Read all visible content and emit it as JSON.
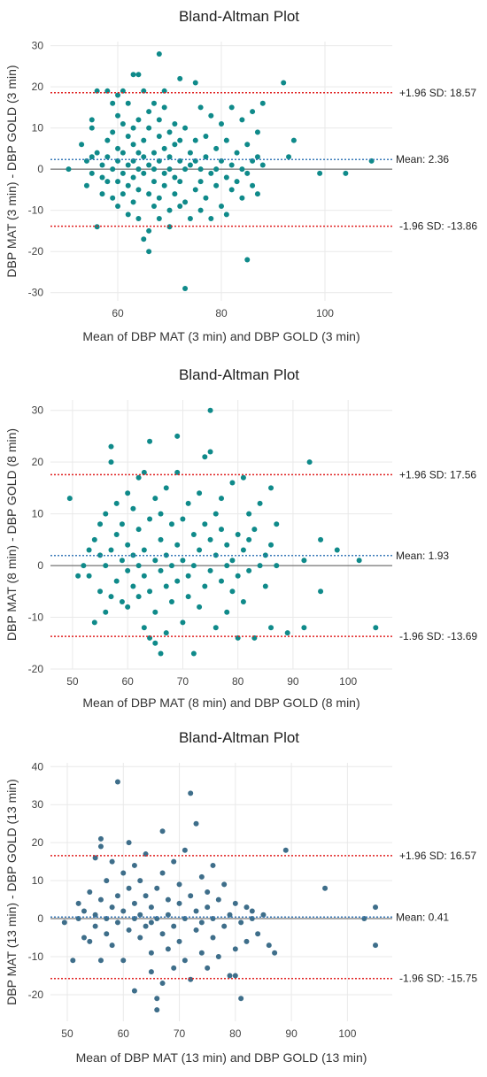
{
  "chart_data": [
    {
      "type": "scatter",
      "title": "Bland-Altman Plot",
      "xlabel": "Mean of DBP MAT (3 min) and DBP GOLD (3 min)",
      "ylabel": "DBP MAT (3 min) - DBP GOLD (3 min)",
      "xlim": [
        47,
        113
      ],
      "ylim": [
        -32,
        31
      ],
      "xticks": [
        60,
        80,
        100
      ],
      "yticks": [
        -30,
        -20,
        -10,
        0,
        10,
        20,
        30
      ],
      "grid": true,
      "point_color": "#0f8a8a",
      "mean": 2.36,
      "upper_loa": 18.57,
      "lower_loa": -13.86,
      "mean_label": "Mean: 2.36",
      "upper_label": "+1.96 SD: 18.57",
      "lower_label": "-1.96 SD: -13.86",
      "points": [
        [
          50.5,
          0
        ],
        [
          53,
          6
        ],
        [
          54,
          2
        ],
        [
          54,
          -4
        ],
        [
          55,
          3
        ],
        [
          55,
          -1
        ],
        [
          55,
          10
        ],
        [
          55,
          12
        ],
        [
          56,
          -14
        ],
        [
          56,
          4
        ],
        [
          56,
          19
        ],
        [
          57,
          1
        ],
        [
          57,
          -2
        ],
        [
          57,
          -6
        ],
        [
          58,
          7
        ],
        [
          58,
          3
        ],
        [
          58,
          19
        ],
        [
          58,
          -3
        ],
        [
          59,
          -7
        ],
        [
          59,
          0
        ],
        [
          59,
          16
        ],
        [
          59,
          9
        ],
        [
          60,
          -9
        ],
        [
          60,
          5
        ],
        [
          60,
          -3
        ],
        [
          60,
          13
        ],
        [
          60,
          18
        ],
        [
          60,
          2
        ],
        [
          61,
          4
        ],
        [
          61,
          -1
        ],
        [
          61,
          11
        ],
        [
          61,
          -6
        ],
        [
          61,
          19
        ],
        [
          62,
          1
        ],
        [
          62,
          8
        ],
        [
          62,
          -4
        ],
        [
          62,
          16
        ],
        [
          62,
          -11
        ],
        [
          63,
          2
        ],
        [
          63,
          6
        ],
        [
          63,
          -2
        ],
        [
          63,
          23
        ],
        [
          63,
          10
        ],
        [
          63,
          -8
        ],
        [
          64,
          23
        ],
        [
          64,
          0
        ],
        [
          64,
          4
        ],
        [
          64,
          -12
        ],
        [
          64,
          12
        ],
        [
          64,
          -5
        ],
        [
          65,
          7
        ],
        [
          65,
          -1
        ],
        [
          65,
          19
        ],
        [
          65,
          -17
        ],
        [
          65,
          3
        ],
        [
          66,
          -20
        ],
        [
          66,
          1
        ],
        [
          66,
          10
        ],
        [
          66,
          -6
        ],
        [
          66,
          14
        ],
        [
          66,
          -15
        ],
        [
          67,
          4
        ],
        [
          67,
          -9
        ],
        [
          67,
          16
        ],
        [
          67,
          0
        ],
        [
          67,
          -3
        ],
        [
          68,
          2
        ],
        [
          68,
          28
        ],
        [
          68,
          8
        ],
        [
          68,
          -12
        ],
        [
          68,
          -7
        ],
        [
          68,
          12
        ],
        [
          69,
          -1
        ],
        [
          69,
          5
        ],
        [
          69,
          15
        ],
        [
          69,
          -4
        ],
        [
          69,
          19
        ],
        [
          70,
          9
        ],
        [
          70,
          -10
        ],
        [
          70,
          0
        ],
        [
          70,
          3
        ],
        [
          70,
          -14
        ],
        [
          71,
          6
        ],
        [
          71,
          -2
        ],
        [
          71,
          11
        ],
        [
          71,
          -6
        ],
        [
          72,
          2
        ],
        [
          72,
          -9
        ],
        [
          72,
          7
        ],
        [
          72,
          22
        ],
        [
          72,
          -3
        ],
        [
          73,
          0
        ],
        [
          73,
          -29
        ],
        [
          73,
          10
        ],
        [
          73,
          -8
        ],
        [
          74,
          4
        ],
        [
          74,
          -12
        ],
        [
          74,
          1
        ],
        [
          75,
          21
        ],
        [
          75,
          -5
        ],
        [
          75,
          7
        ],
        [
          75,
          2
        ],
        [
          76,
          -10
        ],
        [
          76,
          15
        ],
        [
          76,
          0
        ],
        [
          76,
          -3
        ],
        [
          77,
          8
        ],
        [
          77,
          -7
        ],
        [
          77,
          3
        ],
        [
          78,
          13
        ],
        [
          78,
          -1
        ],
        [
          78,
          -12
        ],
        [
          79,
          5
        ],
        [
          79,
          0
        ],
        [
          79,
          -4
        ],
        [
          80,
          11
        ],
        [
          80,
          2
        ],
        [
          80,
          -9
        ],
        [
          81,
          -2
        ],
        [
          81,
          7
        ],
        [
          81,
          -11
        ],
        [
          82,
          15
        ],
        [
          82,
          1
        ],
        [
          82,
          -5
        ],
        [
          83,
          4
        ],
        [
          83,
          -3
        ],
        [
          84,
          12
        ],
        [
          84,
          0
        ],
        [
          84,
          -7
        ],
        [
          85,
          -22
        ],
        [
          85,
          6
        ],
        [
          85,
          -1
        ],
        [
          86,
          14
        ],
        [
          86,
          2
        ],
        [
          86,
          -4
        ],
        [
          87,
          9
        ],
        [
          87,
          -6
        ],
        [
          87,
          3
        ],
        [
          88,
          16
        ],
        [
          88,
          1
        ],
        [
          92,
          21
        ],
        [
          93,
          3
        ],
        [
          94,
          7
        ],
        [
          99,
          -1
        ],
        [
          104,
          -1
        ],
        [
          109,
          2
        ]
      ]
    },
    {
      "type": "scatter",
      "title": "Bland-Altman Plot",
      "xlabel": "Mean of DBP MAT (8 min) and DBP GOLD (8 min)",
      "ylabel": "DBP MAT (8 min) - DBP GOLD (8 min)",
      "xlim": [
        46,
        108
      ],
      "ylim": [
        -20,
        32
      ],
      "xticks": [
        50,
        60,
        70,
        80,
        90,
        100
      ],
      "yticks": [
        -20,
        -10,
        0,
        10,
        20,
        30
      ],
      "grid": true,
      "point_color": "#0f8a8a",
      "mean": 1.93,
      "upper_loa": 17.56,
      "lower_loa": -13.69,
      "mean_label": "Mean: 1.93",
      "upper_label": "+1.96 SD: 17.56",
      "lower_label": "-1.96 SD: -13.69",
      "points": [
        [
          49.5,
          13
        ],
        [
          51,
          -2
        ],
        [
          52,
          0
        ],
        [
          53,
          -2
        ],
        [
          53,
          3
        ],
        [
          54,
          -11
        ],
        [
          54,
          5
        ],
        [
          55,
          2
        ],
        [
          55,
          -5
        ],
        [
          55,
          8
        ],
        [
          56,
          10
        ],
        [
          56,
          0
        ],
        [
          56,
          -9
        ],
        [
          57,
          23
        ],
        [
          57,
          20
        ],
        [
          57,
          3
        ],
        [
          57,
          -6
        ],
        [
          58,
          6
        ],
        [
          58,
          -3
        ],
        [
          58,
          12
        ],
        [
          59,
          -7
        ],
        [
          59,
          1
        ],
        [
          59,
          8
        ],
        [
          60,
          14
        ],
        [
          60,
          -1
        ],
        [
          60,
          4
        ],
        [
          60,
          -8
        ],
        [
          61,
          11
        ],
        [
          61,
          -4
        ],
        [
          61,
          2
        ],
        [
          62,
          17
        ],
        [
          62,
          -6
        ],
        [
          62,
          7
        ],
        [
          62,
          0
        ],
        [
          63,
          18
        ],
        [
          63,
          -12
        ],
        [
          63,
          3
        ],
        [
          63,
          -2
        ],
        [
          64,
          24
        ],
        [
          64,
          -14
        ],
        [
          64,
          9
        ],
        [
          64,
          -5
        ],
        [
          65,
          -15
        ],
        [
          65,
          1
        ],
        [
          65,
          13
        ],
        [
          65,
          -9
        ],
        [
          66,
          -17
        ],
        [
          66,
          5
        ],
        [
          66,
          -1
        ],
        [
          66,
          10
        ],
        [
          67,
          -13
        ],
        [
          67,
          2
        ],
        [
          67,
          15
        ],
        [
          67,
          -4
        ],
        [
          68,
          8
        ],
        [
          68,
          0
        ],
        [
          68,
          -7
        ],
        [
          69,
          18
        ],
        [
          69,
          -3
        ],
        [
          69,
          4
        ],
        [
          69,
          25
        ],
        [
          70,
          -11
        ],
        [
          70,
          1
        ],
        [
          70,
          9
        ],
        [
          71,
          12
        ],
        [
          71,
          -6
        ],
        [
          71,
          -2
        ],
        [
          72,
          -17
        ],
        [
          72,
          6
        ],
        [
          72,
          0
        ],
        [
          73,
          14
        ],
        [
          73,
          -8
        ],
        [
          73,
          3
        ],
        [
          74,
          21
        ],
        [
          74,
          -4
        ],
        [
          74,
          8
        ],
        [
          75,
          30
        ],
        [
          75,
          22
        ],
        [
          75,
          -1
        ],
        [
          75,
          5
        ],
        [
          76,
          -12
        ],
        [
          76,
          10
        ],
        [
          76,
          2
        ],
        [
          77,
          -3
        ],
        [
          77,
          7
        ],
        [
          77,
          13
        ],
        [
          78,
          0
        ],
        [
          78,
          -9
        ],
        [
          78,
          4
        ],
        [
          79,
          16
        ],
        [
          79,
          -5
        ],
        [
          79,
          1
        ],
        [
          80,
          -14
        ],
        [
          80,
          6
        ],
        [
          80,
          -2
        ],
        [
          81,
          17
        ],
        [
          81,
          3
        ],
        [
          81,
          -7
        ],
        [
          82,
          10
        ],
        [
          82,
          -1
        ],
        [
          82,
          5
        ],
        [
          83,
          -14
        ],
        [
          83,
          7
        ],
        [
          84,
          12
        ],
        [
          84,
          0
        ],
        [
          85,
          -4
        ],
        [
          85,
          2
        ],
        [
          86,
          15
        ],
        [
          86,
          -12
        ],
        [
          86,
          4
        ],
        [
          87,
          8
        ],
        [
          87,
          0
        ],
        [
          89,
          -13
        ],
        [
          92,
          -12
        ],
        [
          92,
          1
        ],
        [
          93,
          20
        ],
        [
          95,
          5
        ],
        [
          95,
          -5
        ],
        [
          98,
          3
        ],
        [
          102,
          1
        ],
        [
          105,
          -12
        ]
      ]
    },
    {
      "type": "scatter",
      "title": "Bland-Altman Plot",
      "xlabel": "Mean of DBP MAT (13 min) and DBP GOLD (13 min)",
      "ylabel": "DBP MAT (13 min) - DBP GOLD (13 min)",
      "xlim": [
        47,
        108
      ],
      "ylim": [
        -27,
        41
      ],
      "xticks": [
        50,
        60,
        70,
        80,
        90,
        100
      ],
      "yticks": [
        -20,
        -10,
        0,
        10,
        20,
        30,
        40
      ],
      "grid": true,
      "point_color": "#3e6e8a",
      "mean": 0.41,
      "upper_loa": 16.57,
      "lower_loa": -15.75,
      "mean_label": "Mean: 0.41",
      "upper_label": "+1.96 SD: 16.57",
      "lower_label": "-1.96 SD: -15.75",
      "points": [
        [
          49.5,
          -1
        ],
        [
          51,
          -11
        ],
        [
          52,
          4
        ],
        [
          52,
          0
        ],
        [
          53,
          2
        ],
        [
          53,
          -5
        ],
        [
          54,
          -6
        ],
        [
          54,
          7
        ],
        [
          55,
          1
        ],
        [
          55,
          -2
        ],
        [
          55,
          16
        ],
        [
          56,
          19
        ],
        [
          56,
          -11
        ],
        [
          56,
          5
        ],
        [
          56,
          21
        ],
        [
          57,
          0
        ],
        [
          57,
          -4
        ],
        [
          57,
          10
        ],
        [
          58,
          15
        ],
        [
          58,
          -7
        ],
        [
          58,
          3
        ],
        [
          59,
          -1
        ],
        [
          59,
          36
        ],
        [
          59,
          6
        ],
        [
          60,
          -11
        ],
        [
          60,
          2
        ],
        [
          60,
          12
        ],
        [
          61,
          -3
        ],
        [
          61,
          20
        ],
        [
          61,
          8
        ],
        [
          62,
          0
        ],
        [
          62,
          -19
        ],
        [
          62,
          4
        ],
        [
          62,
          14
        ],
        [
          63,
          -5
        ],
        [
          63,
          10
        ],
        [
          63,
          1
        ],
        [
          64,
          -2
        ],
        [
          64,
          17
        ],
        [
          64,
          6
        ],
        [
          65,
          -9
        ],
        [
          65,
          -14
        ],
        [
          65,
          3
        ],
        [
          65,
          -1
        ],
        [
          66,
          -24
        ],
        [
          66,
          -21
        ],
        [
          66,
          8
        ],
        [
          66,
          0
        ],
        [
          67,
          -17
        ],
        [
          67,
          12
        ],
        [
          67,
          23
        ],
        [
          67,
          -4
        ],
        [
          68,
          5
        ],
        [
          68,
          -8
        ],
        [
          68,
          1
        ],
        [
          69,
          -13
        ],
        [
          69,
          15
        ],
        [
          69,
          -2
        ],
        [
          70,
          9
        ],
        [
          70,
          -6
        ],
        [
          70,
          4
        ],
        [
          71,
          -11
        ],
        [
          71,
          18
        ],
        [
          71,
          0
        ],
        [
          72,
          33
        ],
        [
          72,
          -16
        ],
        [
          72,
          6
        ],
        [
          73,
          25
        ],
        [
          73,
          -3
        ],
        [
          73,
          2
        ],
        [
          74,
          -9
        ],
        [
          74,
          11
        ],
        [
          74,
          -1
        ],
        [
          75,
          7
        ],
        [
          75,
          -13
        ],
        [
          75,
          3
        ],
        [
          76,
          -5
        ],
        [
          76,
          14
        ],
        [
          76,
          0
        ],
        [
          77,
          -10
        ],
        [
          77,
          5
        ],
        [
          78,
          -2
        ],
        [
          78,
          9
        ],
        [
          79,
          -15
        ],
        [
          79,
          1
        ],
        [
          80,
          -15
        ],
        [
          80,
          -8
        ],
        [
          80,
          4
        ],
        [
          81,
          -21
        ],
        [
          81,
          -1
        ],
        [
          82,
          3
        ],
        [
          82,
          -6
        ],
        [
          83,
          0
        ],
        [
          83,
          2
        ],
        [
          84,
          -4
        ],
        [
          85,
          1
        ],
        [
          86,
          -7
        ],
        [
          87,
          -9
        ],
        [
          89,
          18
        ],
        [
          96,
          8
        ],
        [
          103,
          0
        ],
        [
          105,
          3
        ],
        [
          105,
          -7
        ]
      ]
    }
  ]
}
